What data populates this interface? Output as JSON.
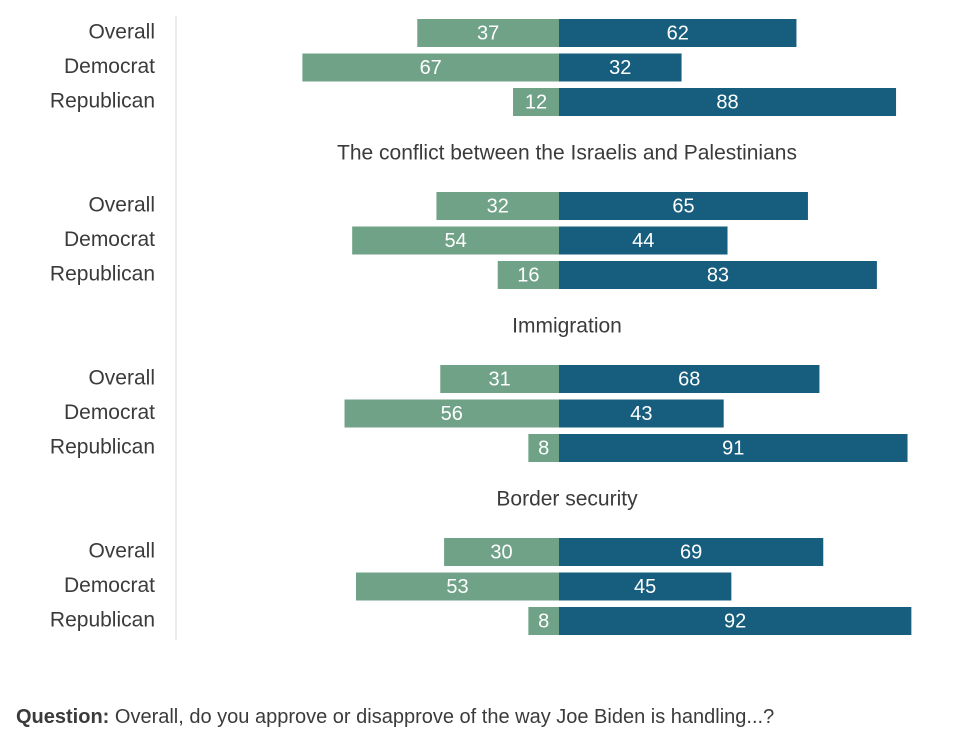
{
  "chart_data": {
    "type": "bar",
    "orientation": "horizontal-diverging",
    "colors": {
      "left": "#6fa287",
      "right": "#175e7e",
      "label_text": "#ffffff",
      "axis_line": "#d9d9d9",
      "text": "#3b3b3b"
    },
    "scale_max": 100,
    "groups": [
      {
        "title": "",
        "rows": [
          {
            "label": "Overall",
            "left": 37,
            "right": 62
          },
          {
            "label": "Democrat",
            "left": 67,
            "right": 32
          },
          {
            "label": "Republican",
            "left": 12,
            "right": 88
          }
        ]
      },
      {
        "title": "The conflict between the Israelis and Palestinians",
        "rows": [
          {
            "label": "Overall",
            "left": 32,
            "right": 65
          },
          {
            "label": "Democrat",
            "left": 54,
            "right": 44
          },
          {
            "label": "Republican",
            "left": 16,
            "right": 83
          }
        ]
      },
      {
        "title": "Immigration",
        "rows": [
          {
            "label": "Overall",
            "left": 31,
            "right": 68
          },
          {
            "label": "Democrat",
            "left": 56,
            "right": 43
          },
          {
            "label": "Republican",
            "left": 8,
            "right": 91
          }
        ]
      },
      {
        "title": "Border security",
        "rows": [
          {
            "label": "Overall",
            "left": 30,
            "right": 69
          },
          {
            "label": "Democrat",
            "left": 53,
            "right": 45
          },
          {
            "label": "Republican",
            "left": 8,
            "right": 92
          }
        ]
      }
    ]
  },
  "footnote": {
    "bold": "Question:",
    "text": " Overall, do you approve or disapprove of the way Joe Biden is handling...?"
  }
}
